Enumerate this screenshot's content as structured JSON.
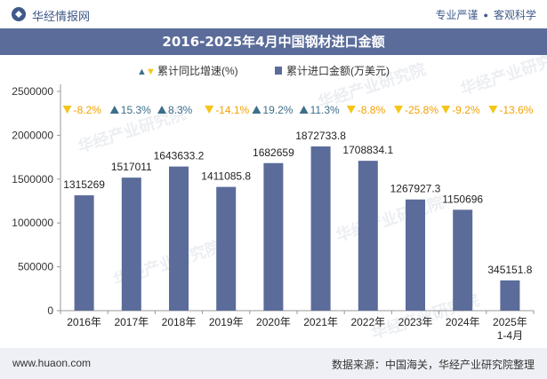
{
  "header": {
    "brand": "华经情报网",
    "links": [
      "专业严谨",
      "客观科学"
    ]
  },
  "chart_data": {
    "type": "bar",
    "title": "2016-2025年4月中国钢材进口金额",
    "legend": {
      "rate_label": "累计同比增速(%)",
      "value_label": "累计进口金额(万美元)"
    },
    "categories": [
      "2016年",
      "2017年",
      "2018年",
      "2019年",
      "2020年",
      "2021年",
      "2022年",
      "2023年",
      "2024年",
      "2025年\n1-4月"
    ],
    "series": [
      {
        "name": "累计进口金额(万美元)",
        "values": [
          1315269,
          1517011,
          1643633.2,
          1411085.8,
          1682659,
          1872733.8,
          1708834.1,
          1267927.3,
          1150696,
          345151.8
        ],
        "labels": [
          "1315269",
          "1517011",
          "1643633.2",
          "1411085.8",
          "1682659",
          "1872733.8",
          "1708834.1",
          "1267927.3",
          "1150696",
          "345151.8"
        ]
      },
      {
        "name": "累计同比增速(%)",
        "values": [
          -8.2,
          15.3,
          8.3,
          -14.1,
          19.2,
          11.3,
          -8.8,
          -25.8,
          -9.2,
          -13.6
        ],
        "labels": [
          "-8.2%",
          "15.3%",
          "8.3%",
          "-14.1%",
          "19.2%",
          "11.3%",
          "-8.8%",
          "-25.8%",
          "-9.2%",
          "-13.6%"
        ]
      }
    ],
    "yticks": [
      "0",
      "500000",
      "1000000",
      "1500000",
      "2000000",
      "2500000"
    ],
    "ylim": [
      0,
      2500000
    ],
    "colors": {
      "bar": "#5b6c9a",
      "up": "#3d6e8a",
      "down": "#f5c518",
      "rate_text": "#3d6e8a",
      "rate_neg_text": "#f5a000"
    }
  },
  "footer": {
    "site": "www.huaon.com",
    "source": "数据来源：中国海关，华经产业研究院整理"
  },
  "watermark": "华经产业研究院"
}
